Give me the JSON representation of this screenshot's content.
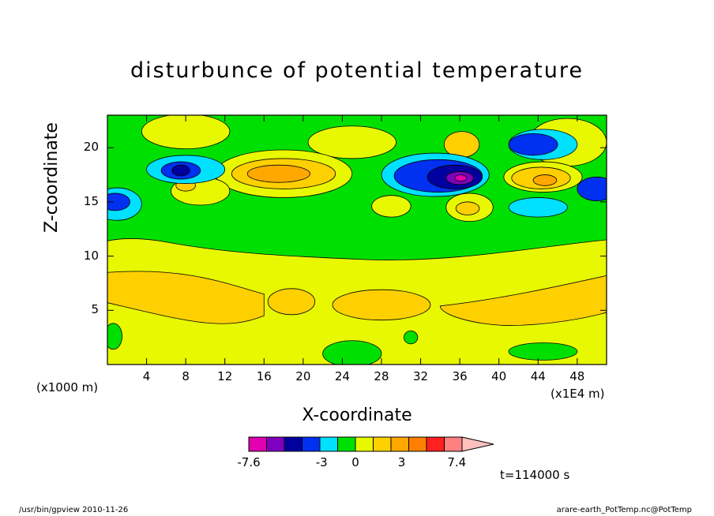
{
  "chart_data": {
    "type": "heatmap",
    "title": "disturbunce of potential temperature",
    "xlabel": "X-coordinate",
    "ylabel": "Z-coordinate",
    "x_unit_label": "(x1E4 m)",
    "y_unit_label": "(x1000 m)",
    "xlim": [
      0,
      51
    ],
    "ylim": [
      0,
      23
    ],
    "x_ticks": [
      4,
      8,
      12,
      16,
      20,
      24,
      28,
      32,
      36,
      40,
      44,
      48
    ],
    "y_ticks": [
      5,
      10,
      15,
      20
    ],
    "colorbar": {
      "min": -7.6,
      "max": 7.4,
      "labels": [
        "-7.6",
        "-3",
        "0",
        "3",
        "7.4"
      ],
      "levels": [
        -7.6,
        -6.1,
        -4.6,
        -3,
        -1.5,
        -0.5,
        0.5,
        1.5,
        3,
        4.5,
        6,
        7.4
      ],
      "colors": [
        "#e000b0",
        "#8000c0",
        "#0000a0",
        "#0030f0",
        "#00e0ff",
        "#00e000",
        "#e8f800",
        "#ffd000",
        "#ffa800",
        "#ff8000",
        "#ff2020",
        "#ff8080",
        "#ffc0c0"
      ]
    },
    "features": [
      {
        "x": 17.5,
        "y": 17.6,
        "value": 4.5,
        "sign": "warm"
      },
      {
        "x": 36,
        "y": 17.2,
        "value": -7.6,
        "sign": "cold"
      },
      {
        "x": 44.5,
        "y": 17.0,
        "value": 4.0,
        "sign": "warm"
      },
      {
        "x": 7.5,
        "y": 17.8,
        "value": -5.0,
        "sign": "cold"
      },
      {
        "x": 1.0,
        "y": 15.0,
        "value": -4.0,
        "sign": "cold"
      },
      {
        "x": 30.5,
        "y": 18.0,
        "value": -5.0,
        "sign": "cold"
      },
      {
        "x": 44,
        "y": 20.5,
        "value": -4.0,
        "sign": "cold"
      }
    ]
  },
  "annotations": {
    "time": "t=114000 s",
    "footer_left": "/usr/bin/gpview  2010-11-26",
    "footer_right": "arare-earth_PotTemp.nc@PotTemp"
  }
}
